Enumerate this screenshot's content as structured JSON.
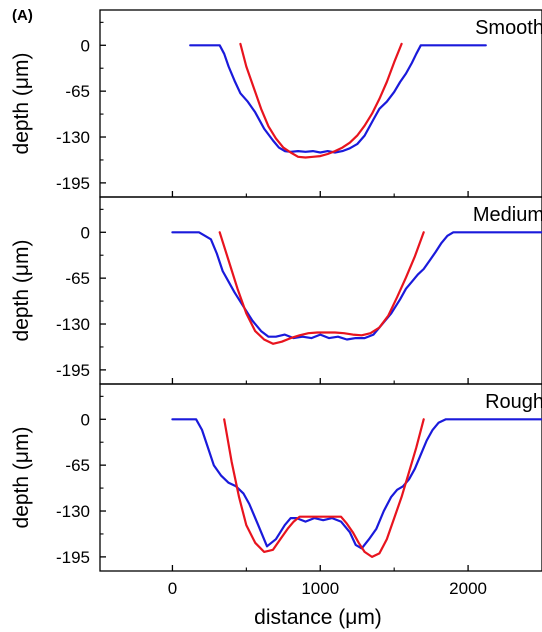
{
  "figure": {
    "panel_label": "(A)"
  },
  "colors": {
    "measured": "#1a1adb",
    "fit": "#e8141e",
    "axis": "#000000"
  },
  "chart_data": [
    {
      "type": "line",
      "title": "Smooth",
      "xlabel": "distance (μm)",
      "ylabel": "depth (μm)",
      "xlim": [
        -490,
        2500
      ],
      "ylim": [
        -215,
        50
      ],
      "xticks": [
        0,
        1000,
        2000
      ],
      "yticks": [
        0,
        -65,
        -130,
        -195
      ],
      "ytick_labels": [
        "0",
        "-65",
        "-130",
        "-195"
      ],
      "series": [
        {
          "color": "#1a1adb",
          "x": [
            120,
            320,
            350,
            380,
            420,
            460,
            510,
            560,
            620,
            680,
            720,
            760,
            800,
            850,
            900,
            950,
            1000,
            1050,
            1100,
            1150,
            1200,
            1250,
            1300,
            1360,
            1400,
            1450,
            1500,
            1540,
            1580,
            1620,
            1650,
            1680,
            1720,
            1760,
            1800,
            2120
          ],
          "y": [
            0,
            0,
            -12,
            -30,
            -50,
            -68,
            -80,
            -95,
            -118,
            -135,
            -145,
            -150,
            -151,
            -150,
            -151,
            -150,
            -152,
            -150,
            -152,
            -150,
            -146,
            -140,
            -128,
            -105,
            -90,
            -80,
            -66,
            -52,
            -40,
            -25,
            -12,
            0,
            0,
            0,
            0,
            0
          ]
        },
        {
          "color": "#e8141e",
          "x": [
            460,
            500,
            550,
            600,
            650,
            700,
            750,
            800,
            850,
            900,
            950,
            1000,
            1050,
            1100,
            1150,
            1200,
            1250,
            1300,
            1350,
            1400,
            1450,
            1500,
            1550
          ],
          "y": [
            2,
            -30,
            -60,
            -90,
            -115,
            -132,
            -145,
            -152,
            -158,
            -159,
            -158,
            -157,
            -154,
            -150,
            -145,
            -138,
            -128,
            -114,
            -97,
            -76,
            -52,
            -24,
            2
          ]
        }
      ]
    },
    {
      "type": "line",
      "title": "Medium",
      "xlabel": "distance (μm)",
      "ylabel": "depth (μm)",
      "xlim": [
        -490,
        2500
      ],
      "ylim": [
        -215,
        50
      ],
      "xticks": [
        0,
        1000,
        2000
      ],
      "yticks": [
        0,
        -65,
        -130,
        -195
      ],
      "ytick_labels": [
        "0",
        "-65",
        "-130",
        "-195"
      ],
      "series": [
        {
          "color": "#1a1adb",
          "x": [
            0,
            180,
            220,
            260,
            300,
            340,
            380,
            420,
            480,
            540,
            600,
            650,
            700,
            760,
            820,
            880,
            940,
            1000,
            1060,
            1120,
            1180,
            1240,
            1300,
            1360,
            1420,
            1480,
            1540,
            1580,
            1620,
            1660,
            1700,
            1740,
            1780,
            1820,
            1860,
            1900,
            1950,
            2500
          ],
          "y": [
            0,
            0,
            -5,
            -10,
            -30,
            -55,
            -70,
            -85,
            -105,
            -125,
            -140,
            -148,
            -148,
            -145,
            -150,
            -148,
            -150,
            -145,
            -150,
            -148,
            -152,
            -150,
            -150,
            -145,
            -130,
            -115,
            -95,
            -80,
            -70,
            -60,
            -52,
            -40,
            -28,
            -15,
            -5,
            0,
            0,
            0
          ]
        },
        {
          "color": "#e8141e",
          "x": [
            320,
            380,
            440,
            500,
            560,
            620,
            680,
            740,
            800,
            860,
            920,
            980,
            1040,
            1100,
            1160,
            1220,
            1280,
            1340,
            1400,
            1460,
            1520,
            1580,
            1640,
            1700
          ],
          "y": [
            0,
            -40,
            -80,
            -115,
            -140,
            -152,
            -158,
            -155,
            -150,
            -146,
            -143,
            -142,
            -142,
            -142,
            -143,
            -145,
            -146,
            -143,
            -135,
            -118,
            -92,
            -64,
            -34,
            0
          ]
        }
      ]
    },
    {
      "type": "line",
      "title": "Rough",
      "xlabel": "distance (μm)",
      "ylabel": "depth (μm)",
      "xlim": [
        -490,
        2500
      ],
      "ylim": [
        -215,
        50
      ],
      "xticks": [
        0,
        1000,
        2000
      ],
      "yticks": [
        0,
        -65,
        -130,
        -195
      ],
      "ytick_labels": [
        "0",
        "-65",
        "-130",
        "-195"
      ],
      "series": [
        {
          "color": "#1a1adb",
          "x": [
            0,
            160,
            200,
            240,
            280,
            330,
            380,
            430,
            480,
            520,
            580,
            640,
            700,
            760,
            800,
            840,
            900,
            960,
            1020,
            1080,
            1140,
            1200,
            1240,
            1280,
            1330,
            1380,
            1430,
            1480,
            1520,
            1560,
            1600,
            1640,
            1680,
            1720,
            1760,
            1800,
            1850,
            1900,
            2500
          ],
          "y": [
            0,
            0,
            -15,
            -40,
            -65,
            -80,
            -90,
            -95,
            -105,
            -120,
            -150,
            -180,
            -170,
            -150,
            -140,
            -140,
            -145,
            -140,
            -143,
            -140,
            -145,
            -160,
            -178,
            -183,
            -170,
            -155,
            -130,
            -110,
            -100,
            -95,
            -85,
            -70,
            -50,
            -30,
            -15,
            -5,
            0,
            0,
            0
          ]
        },
        {
          "color": "#e8141e",
          "x": [
            350,
            400,
            450,
            500,
            560,
            620,
            680,
            730,
            780,
            820,
            860,
            900,
            960,
            1020,
            1080,
            1140,
            1180,
            1220,
            1260,
            1300,
            1350,
            1400,
            1450,
            1500,
            1550,
            1600,
            1650,
            1700
          ],
          "y": [
            0,
            -60,
            -110,
            -150,
            -175,
            -188,
            -185,
            -170,
            -155,
            -145,
            -138,
            -138,
            -138,
            -138,
            -138,
            -138,
            -148,
            -160,
            -175,
            -188,
            -195,
            -190,
            -170,
            -140,
            -110,
            -75,
            -40,
            0
          ]
        }
      ]
    }
  ]
}
